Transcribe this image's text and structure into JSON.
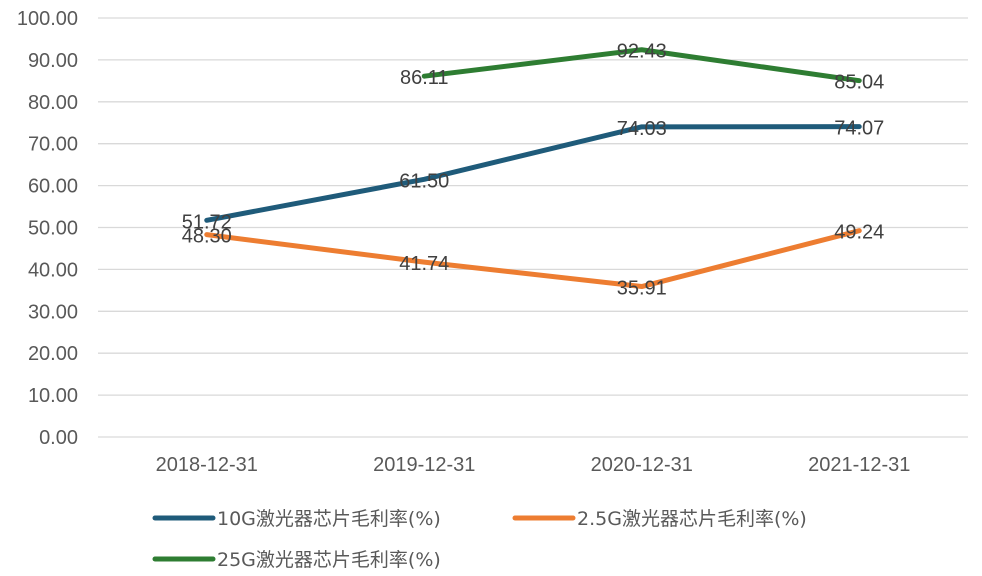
{
  "chart_data": {
    "type": "line",
    "categories": [
      "2018-12-31",
      "2019-12-31",
      "2020-12-31",
      "2021-12-31"
    ],
    "ylim": [
      0,
      100
    ],
    "yticks": [
      "0.00",
      "10.00",
      "20.00",
      "30.00",
      "40.00",
      "50.00",
      "60.00",
      "70.00",
      "80.00",
      "90.00",
      "100.00"
    ],
    "grid": true,
    "legend_position": "bottom",
    "series": [
      {
        "name": "10G激光器芯片毛利率(%)",
        "color": "#1f5b7a",
        "values": [
          51.72,
          61.5,
          74.03,
          74.07
        ],
        "labels": [
          "51.72",
          "61.50",
          "74.03",
          "74.07"
        ]
      },
      {
        "name": "2.5G激光器芯片毛利率(%)",
        "color": "#ed7d31",
        "values": [
          48.3,
          41.74,
          35.91,
          49.24
        ],
        "labels": [
          "48.30",
          "41.74",
          "35.91",
          "49.24"
        ]
      },
      {
        "name": "25G激光器芯片毛利率(%)",
        "color": "#2e7d32",
        "values": [
          null,
          86.11,
          92.43,
          85.04
        ],
        "labels": [
          null,
          "86.11",
          "92.43",
          "85.04"
        ]
      }
    ]
  }
}
